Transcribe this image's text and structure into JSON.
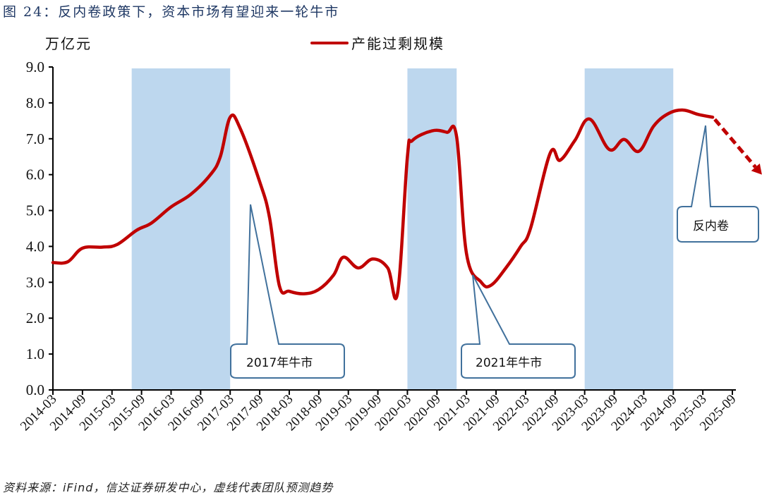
{
  "title": "图 24：反内卷政策下，资本市场有望迎来一轮牛市",
  "unit_label": "万亿元",
  "legend": {
    "label": "产能过剩规模",
    "color": "#c00000"
  },
  "source": "资料来源：iFind，信达证券研发中心，虚线代表团队预测趋势",
  "callouts": [
    {
      "id": "c2017",
      "label": "2017年牛市"
    },
    {
      "id": "c2021",
      "label": "2021年牛市"
    },
    {
      "id": "cfnj",
      "label": "反内卷"
    }
  ],
  "chart_data": {
    "type": "line",
    "title": "图 24：反内卷政策下，资本市场有望迎来一轮牛市",
    "xlabel": "",
    "ylabel": "万亿元",
    "ylim": [
      0,
      9
    ],
    "yticks": [
      "0.0",
      "1.0",
      "2.0",
      "3.0",
      "4.0",
      "5.0",
      "6.0",
      "7.0",
      "8.0",
      "9.0"
    ],
    "categories": [
      "2014-03",
      "2014-09",
      "2015-03",
      "2015-09",
      "2016-03",
      "2016-09",
      "2017-03",
      "2017-09",
      "2018-03",
      "2018-09",
      "2019-03",
      "2019-09",
      "2020-03",
      "2020-09",
      "2021-03",
      "2021-09",
      "2022-03",
      "2022-09",
      "2023-03",
      "2023-09",
      "2024-03",
      "2024-09",
      "2025-03",
      "2025-09"
    ],
    "grid": false,
    "legend_position": "top",
    "series": [
      {
        "name": "产能过剩规模",
        "color": "#c00000",
        "style": "solid",
        "points": [
          [
            "2014-03",
            3.55
          ],
          [
            "2014-06",
            3.57
          ],
          [
            "2014-09",
            3.95
          ],
          [
            "2015-01",
            3.98
          ],
          [
            "2015-04",
            4.05
          ],
          [
            "2015-08",
            4.45
          ],
          [
            "2015-11",
            4.65
          ],
          [
            "2016-03",
            5.1
          ],
          [
            "2016-07",
            5.45
          ],
          [
            "2016-11",
            6.0
          ],
          [
            "2017-01",
            6.5
          ],
          [
            "2017-03",
            7.6
          ],
          [
            "2017-05",
            7.3
          ],
          [
            "2017-09",
            5.8
          ],
          [
            "2017-11",
            4.8
          ],
          [
            "2018-01",
            2.9
          ],
          [
            "2018-03",
            2.75
          ],
          [
            "2018-06",
            2.68
          ],
          [
            "2018-09",
            2.8
          ],
          [
            "2018-12",
            3.2
          ],
          [
            "2019-02",
            3.7
          ],
          [
            "2019-05",
            3.4
          ],
          [
            "2019-08",
            3.65
          ],
          [
            "2019-11",
            3.4
          ],
          [
            "2020-01",
            2.7
          ],
          [
            "2020-03",
            6.5
          ],
          [
            "2020-04",
            6.95
          ],
          [
            "2020-08",
            7.22
          ],
          [
            "2020-11",
            7.18
          ],
          [
            "2021-01",
            7.05
          ],
          [
            "2021-03",
            3.8
          ],
          [
            "2021-06",
            3.0
          ],
          [
            "2021-08",
            2.92
          ],
          [
            "2021-11",
            3.4
          ],
          [
            "2022-02",
            4.0
          ],
          [
            "2022-04",
            4.5
          ],
          [
            "2022-08",
            6.6
          ],
          [
            "2022-10",
            6.4
          ],
          [
            "2023-01",
            6.95
          ],
          [
            "2023-04",
            7.55
          ],
          [
            "2023-08",
            6.7
          ],
          [
            "2023-11",
            6.98
          ],
          [
            "2024-02",
            6.65
          ],
          [
            "2024-05",
            7.35
          ],
          [
            "2024-08",
            7.7
          ],
          [
            "2024-11",
            7.8
          ],
          [
            "2025-02",
            7.68
          ],
          [
            "2025-05",
            7.6
          ]
        ]
      },
      {
        "name": "预测趋势",
        "color": "#c00000",
        "style": "dashed-arrow",
        "points": [
          [
            "2025-05",
            7.6
          ],
          [
            "2026-03",
            6.0
          ]
        ]
      }
    ],
    "shaded_periods": [
      {
        "start": "2015-07",
        "end": "2017-03",
        "color": "#bdd7ee"
      },
      {
        "start": "2020-03",
        "end": "2021-01",
        "color": "#bdd7ee"
      },
      {
        "start": "2023-03",
        "end": "2024-09",
        "color": "#bdd7ee"
      }
    ],
    "annotations": [
      "2017年牛市",
      "2021年牛市",
      "反内卷"
    ]
  }
}
